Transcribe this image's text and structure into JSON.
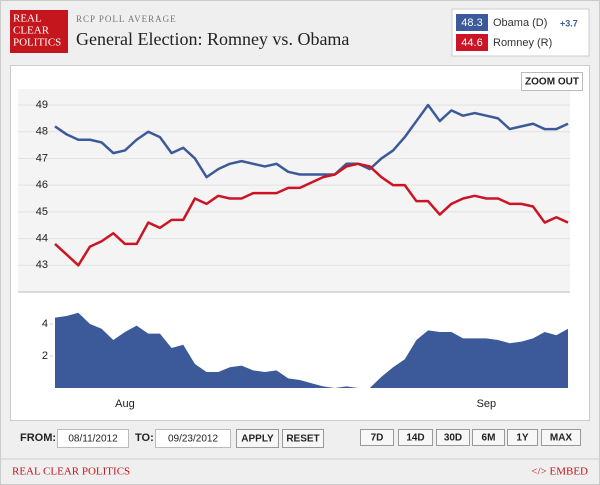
{
  "logo": [
    "REAL",
    "CLEAR",
    "POLITICS"
  ],
  "header": {
    "kicker": "RCP POLL AVERAGE",
    "title": "General Election: Romney vs. Obama"
  },
  "chart_data": {
    "type": "line",
    "categories": [
      null,
      null,
      null,
      null,
      null,
      null,
      "Aug",
      null,
      null,
      null,
      null,
      null,
      null,
      null,
      null,
      null,
      null,
      null,
      null,
      null,
      null,
      null,
      null,
      null,
      null,
      null,
      null,
      null,
      null,
      null,
      null,
      null,
      null,
      null,
      null,
      null,
      null,
      "Sep",
      null,
      null,
      null,
      null,
      null,
      null,
      null
    ],
    "series": [
      {
        "name": "Obama (D)",
        "color": "#3c5a9a",
        "values": [
          48.2,
          47.9,
          47.7,
          47.7,
          47.6,
          47.2,
          47.3,
          47.7,
          48.0,
          47.8,
          47.2,
          47.4,
          47.0,
          46.3,
          46.6,
          46.8,
          46.9,
          46.8,
          46.7,
          46.8,
          46.5,
          46.4,
          46.4,
          46.4,
          46.4,
          46.8,
          46.8,
          46.6,
          47.0,
          47.3,
          47.8,
          48.4,
          49.0,
          48.4,
          48.8,
          48.6,
          48.7,
          48.6,
          48.5,
          48.1,
          48.2,
          48.3,
          48.1,
          48.1,
          48.3
        ]
      },
      {
        "name": "Romney (R)",
        "color": "#cc1424",
        "values": [
          43.8,
          43.4,
          43.0,
          43.7,
          43.9,
          44.2,
          43.8,
          43.8,
          44.6,
          44.4,
          44.7,
          44.7,
          45.5,
          45.3,
          45.6,
          45.5,
          45.5,
          45.7,
          45.7,
          45.7,
          45.9,
          45.9,
          46.1,
          46.3,
          46.4,
          46.7,
          46.8,
          46.7,
          46.3,
          46.0,
          46.0,
          45.4,
          45.4,
          44.9,
          45.3,
          45.5,
          45.6,
          45.5,
          45.5,
          45.3,
          45.3,
          45.2,
          44.6,
          44.8,
          44.6
        ]
      }
    ],
    "ylim": [
      42,
      49.6
    ],
    "yticks": [
      43,
      44,
      45,
      46,
      47,
      48,
      49
    ],
    "grid": true,
    "lead": {
      "value": 3.7,
      "label": "+3.7"
    },
    "spread": {
      "type": "area",
      "color": "#3c5a9a",
      "values": [
        4.4,
        4.5,
        4.7,
        4.0,
        3.7,
        3.0,
        3.5,
        3.9,
        3.4,
        3.4,
        2.5,
        2.7,
        1.5,
        1.0,
        1.0,
        1.3,
        1.4,
        1.1,
        1.0,
        1.1,
        0.6,
        0.5,
        0.3,
        0.1,
        0.0,
        0.1,
        0.0,
        0.0,
        0.7,
        1.3,
        1.8,
        3.0,
        3.6,
        3.5,
        3.5,
        3.1,
        3.1,
        3.1,
        3.0,
        2.8,
        2.9,
        3.1,
        3.5,
        3.3,
        3.7
      ],
      "ylim": [
        0,
        6
      ],
      "yticks": [
        2,
        4
      ]
    }
  },
  "controls": {
    "zoom_out": "ZOOM OUT",
    "from_label": "FROM:",
    "from": "08/11/2012",
    "to_label": "TO:",
    "to": "09/23/2012",
    "apply": "APPLY",
    "reset": "RESET",
    "ranges": [
      "7D",
      "14D",
      "30D",
      "6M",
      "1Y",
      "MAX"
    ]
  },
  "footer": {
    "brand": "REAL CLEAR POLITICS",
    "embed": "</> EMBED"
  }
}
